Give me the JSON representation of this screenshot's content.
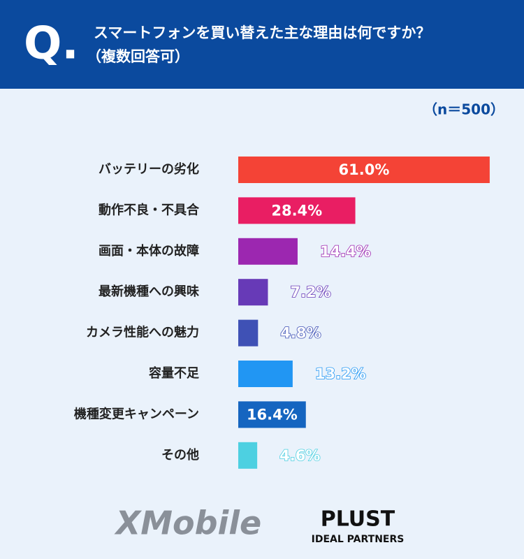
{
  "chart_data": {
    "type": "bar",
    "badge": "Q.",
    "title": "スマートフォンを買い替えた主な理由は何ですか？",
    "subtitle": "（複数回答可）",
    "note": "（n＝500）",
    "categories": [
      "バッテリーの劣化",
      "動作不良・不具合",
      "画面・本体の故障",
      "最新機種への興味",
      "カメラ性能への魅力",
      "容量不足",
      "機種変更キャンペーン",
      "その他"
    ],
    "values": [
      61.0,
      28.4,
      14.4,
      7.2,
      4.8,
      13.2,
      16.4,
      4.6
    ],
    "value_labels": [
      "61.0%",
      "28.4%",
      "14.4%",
      "7.2%",
      "4.8%",
      "13.2%",
      "16.4%",
      "4.6%"
    ],
    "colors": [
      "#f44336",
      "#e91e63",
      "#9c27b0",
      "#673ab7",
      "#3f51b5",
      "#2196f3",
      "#1565c0",
      "#4dd0e1"
    ],
    "label_inside": [
      true,
      true,
      false,
      false,
      false,
      false,
      true,
      false
    ],
    "logos": [
      "XMobile",
      "PLUST",
      "IDEAL PARTNERS"
    ]
  }
}
